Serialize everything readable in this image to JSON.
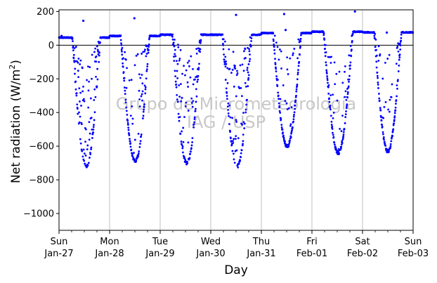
{
  "chart_data": {
    "type": "scatter",
    "xlabel": "Day",
    "ylabel": "Net radiation (W/m²)",
    "ylabel_main": "Net radiation (W/m",
    "ylabel_sup": "2",
    "ylabel_tail": ")",
    "ylim": [
      -1100,
      210
    ],
    "xlim": [
      0,
      7
    ],
    "yticks": [
      {
        "value": 200,
        "label": "200"
      },
      {
        "value": 0,
        "label": "0"
      },
      {
        "value": -200,
        "label": "−200"
      },
      {
        "value": -400,
        "label": "−400"
      },
      {
        "value": -600,
        "label": "−600"
      },
      {
        "value": -800,
        "label": "−800"
      },
      {
        "value": -1000,
        "label": "−1000"
      }
    ],
    "xticks": [
      {
        "day": 0,
        "weekday": "Sun",
        "date": "Jan-27"
      },
      {
        "day": 1,
        "weekday": "Mon",
        "date": "Jan-28"
      },
      {
        "day": 2,
        "weekday": "Tue",
        "date": "Jan-29"
      },
      {
        "day": 3,
        "weekday": "Wed",
        "date": "Jan-30"
      },
      {
        "day": 4,
        "weekday": "Thu",
        "date": "Jan-31"
      },
      {
        "day": 5,
        "weekday": "Fri",
        "date": "Feb-01"
      },
      {
        "day": 6,
        "weekday": "Sat",
        "date": "Feb-02"
      },
      {
        "day": 7,
        "weekday": "Sun",
        "date": "Feb-03"
      }
    ],
    "grid": "vertical",
    "zero_line": true,
    "series": [
      {
        "color": "#0000ff",
        "marker": "point",
        "daily_profiles": [
          {
            "night": 45,
            "min": -720,
            "sunrise": 0.26,
            "sunset": 0.82,
            "scatter": 0.6
          },
          {
            "night": 55,
            "min": -690,
            "sunrise": 0.22,
            "sunset": 0.79,
            "scatter": 0.3
          },
          {
            "night": 62,
            "min": -700,
            "sunrise": 0.24,
            "sunset": 0.81,
            "scatter": 0.55
          },
          {
            "night": 62,
            "min": -720,
            "sunrise": 0.23,
            "sunset": 0.81,
            "scatter": 0.55
          },
          {
            "night": 72,
            "min": -600,
            "sunrise": 0.23,
            "sunset": 0.79,
            "scatter": 0.3
          },
          {
            "night": 80,
            "min": -640,
            "sunrise": 0.23,
            "sunset": 0.81,
            "scatter": 0.35
          },
          {
            "night": 76,
            "min": -630,
            "sunrise": 0.23,
            "sunset": 0.77,
            "scatter": 0.35
          }
        ],
        "spikes": [
          {
            "x": 0.48,
            "y": 145
          },
          {
            "x": 1.49,
            "y": 160
          },
          {
            "x": 3.5,
            "y": 180
          },
          {
            "x": 4.45,
            "y": 185
          },
          {
            "x": 5.85,
            "y": 200
          },
          {
            "x": 6.48,
            "y": 75
          },
          {
            "x": 0.05,
            "y": 55
          },
          {
            "x": 4.48,
            "y": 90
          }
        ]
      }
    ]
  },
  "watermark": {
    "line1": "Grupo de Micrometeorologia",
    "line2": "IAG / USP"
  }
}
